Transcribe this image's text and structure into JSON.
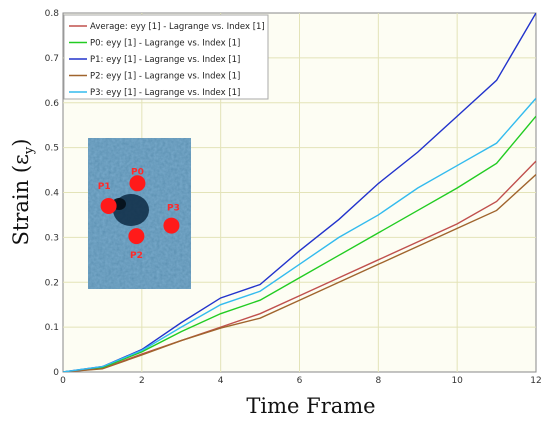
{
  "chart_data": {
    "type": "line",
    "xlabel": "Time Frame",
    "ylabel_main": "Strain (ε",
    "ylabel_sub": "y",
    "ylabel_close": ")",
    "xlim": [
      0,
      12
    ],
    "ylim": [
      0,
      0.8
    ],
    "xticks": [
      0,
      2,
      4,
      6,
      8,
      10,
      12
    ],
    "yticks": [
      0,
      0.1,
      0.2,
      0.3,
      0.4,
      0.5,
      0.6,
      0.7,
      0.8
    ],
    "grid": true,
    "legend_position": "top-left",
    "x": [
      0,
      1,
      2,
      3,
      4,
      5,
      6,
      7,
      8,
      9,
      10,
      11,
      12
    ],
    "series": [
      {
        "name": "Average: eyy [1] - Lagrange vs. Index [1]",
        "color": "#c0504d",
        "values": [
          0,
          0.008,
          0.04,
          0.07,
          0.1,
          0.13,
          0.17,
          0.21,
          0.25,
          0.29,
          0.33,
          0.38,
          0.47
        ]
      },
      {
        "name": "P0: eyy [1] - Lagrange vs. Index [1]",
        "color": "#22cc22",
        "values": [
          0,
          0.01,
          0.045,
          0.09,
          0.13,
          0.16,
          0.21,
          0.26,
          0.31,
          0.36,
          0.41,
          0.465,
          0.57
        ]
      },
      {
        "name": "P1: eyy [1] - Lagrange vs. Index [1]",
        "color": "#2233cc",
        "values": [
          0,
          0.012,
          0.05,
          0.11,
          0.165,
          0.195,
          0.27,
          0.34,
          0.42,
          0.49,
          0.57,
          0.65,
          0.8
        ]
      },
      {
        "name": "P2: eyy [1] - Lagrange vs. Index [1]",
        "color": "#a0642d",
        "values": [
          0,
          0.007,
          0.038,
          0.07,
          0.098,
          0.12,
          0.16,
          0.2,
          0.24,
          0.28,
          0.32,
          0.36,
          0.44
        ]
      },
      {
        "name": "P3: eyy [1] - Lagrange vs. Index [1]",
        "color": "#33bbee",
        "values": [
          0,
          0.012,
          0.048,
          0.1,
          0.15,
          0.18,
          0.24,
          0.3,
          0.35,
          0.41,
          0.46,
          0.51,
          0.61
        ]
      }
    ],
    "inset": {
      "markers": [
        {
          "label": "P0",
          "u": 0.48,
          "v": 0.3
        },
        {
          "label": "P1",
          "u": 0.2,
          "v": 0.45
        },
        {
          "label": "P2",
          "u": 0.47,
          "v": 0.65
        },
        {
          "label": "P3",
          "u": 0.81,
          "v": 0.58
        }
      ],
      "colors": {
        "marker": "#ff1a1a",
        "background": "#5a8fb0"
      }
    }
  }
}
